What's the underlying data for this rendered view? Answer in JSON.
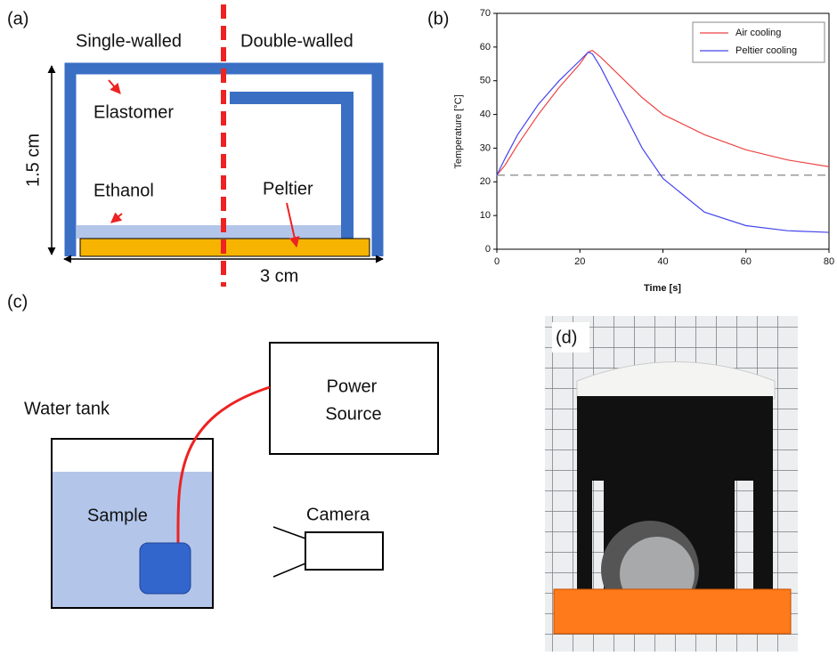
{
  "panel_a": {
    "label": "(a)",
    "left_title": "Single-walled",
    "right_title": "Double-walled",
    "elastomer": "Elastomer",
    "ethanol": "Ethanol",
    "peltier": "Peltier",
    "height_label": "1.5 cm",
    "width_label": "3 cm"
  },
  "chart_data": {
    "type": "line",
    "label": "(b)",
    "x_label": "Time [s]",
    "y_label": "Temperature [°C]",
    "x": [
      0,
      2,
      5,
      10,
      15,
      20,
      22,
      23,
      25,
      30,
      35,
      40,
      50,
      60,
      70,
      80
    ],
    "series": [
      {
        "name": "Air cooling",
        "color": "#ee4444",
        "values": [
          22,
          25,
          31,
          40,
          48,
          55,
          58.5,
          59,
          57,
          51,
          45,
          40,
          34,
          29.5,
          26.5,
          24.5
        ]
      },
      {
        "name": "Peltier cooling",
        "color": "#4444ee",
        "values": [
          22,
          27,
          34,
          43,
          50,
          56,
          58.5,
          58,
          54,
          42,
          30,
          21,
          11,
          7,
          5.5,
          5
        ]
      }
    ],
    "xlim": [
      0,
      80
    ],
    "xticks": [
      0,
      20,
      40,
      60,
      80
    ],
    "ylim": [
      0,
      70
    ],
    "yticks": [
      0,
      10,
      20,
      30,
      40,
      50,
      60,
      70
    ],
    "hline": 22,
    "legend": "upper right"
  },
  "panel_c": {
    "label": "(c)",
    "water_tank": "Water tank",
    "power_source": [
      "Power",
      "Source"
    ],
    "sample": "Sample",
    "camera": "Camera"
  },
  "panel_d": {
    "label": "(d)"
  }
}
